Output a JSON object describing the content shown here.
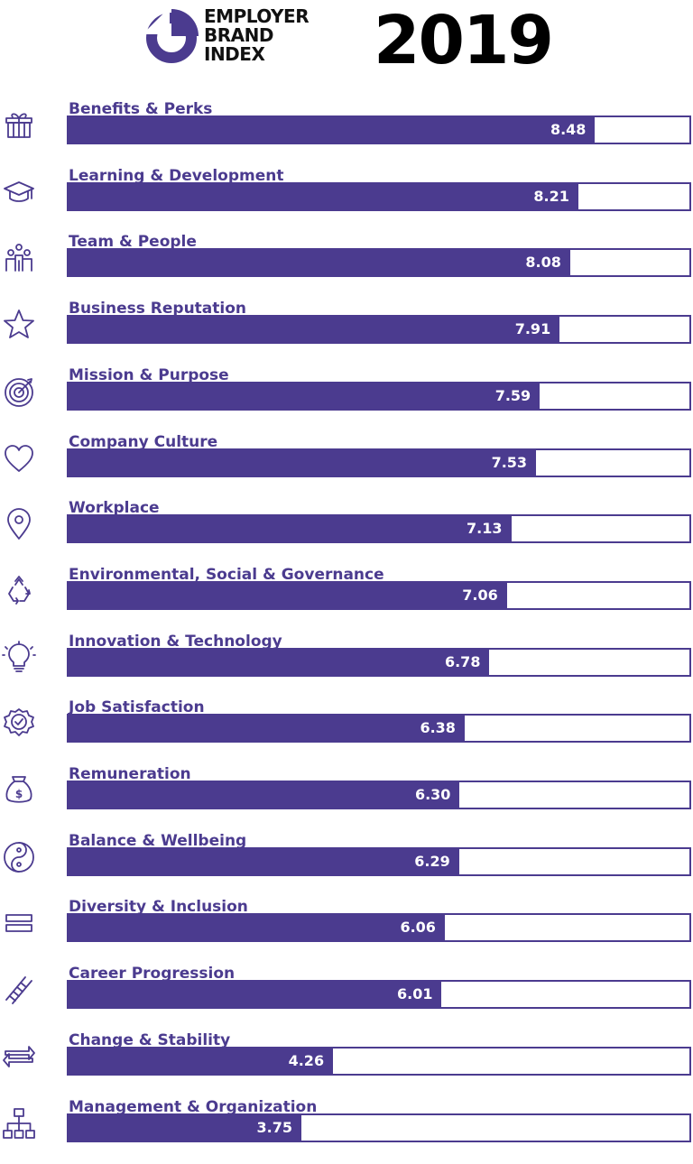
{
  "header": {
    "logo_lines": [
      "EMPLOYER",
      "BRAND",
      "INDEX"
    ],
    "year": "2019"
  },
  "colors": {
    "accent": "#4b3b8f",
    "track": "#ffffff",
    "value_text": "#ffffff"
  },
  "chart_data": {
    "type": "bar",
    "orientation": "horizontal",
    "title": "",
    "xlim": [
      0,
      10
    ],
    "categories": [
      "Benefits & Perks",
      "Learning & Development",
      "Team & People",
      "Business Reputation",
      "Mission & Purpose",
      "Company Culture",
      "Workplace",
      "Environmental, Social & Governance",
      "Innovation & Technology",
      "Job Satisfaction",
      "Remuneration",
      "Balance & Wellbeing",
      "Diversity & Inclusion",
      "Career Progression",
      "Change & Stability",
      "Management & Organization"
    ],
    "values": [
      8.48,
      8.21,
      8.08,
      7.91,
      7.59,
      7.53,
      7.13,
      7.06,
      6.78,
      6.38,
      6.3,
      6.29,
      6.06,
      6.01,
      4.26,
      3.75
    ],
    "value_labels": [
      "8.48",
      "8.21",
      "8.08",
      "7.91",
      "7.59",
      "7.53",
      "7.13",
      "7.06",
      "6.78",
      "6.38",
      "6.30",
      "6.29",
      "6.06",
      "6.01",
      "4.26",
      "3.75"
    ],
    "icons": [
      "gift-icon",
      "graduation-cap-icon",
      "team-icon",
      "star-icon",
      "target-icon",
      "heart-icon",
      "location-pin-icon",
      "recycle-icon",
      "lightbulb-icon",
      "badge-check-icon",
      "money-bag-icon",
      "yin-yang-icon",
      "equals-icon",
      "ladder-icon",
      "arrows-exchange-icon",
      "org-chart-icon"
    ]
  }
}
